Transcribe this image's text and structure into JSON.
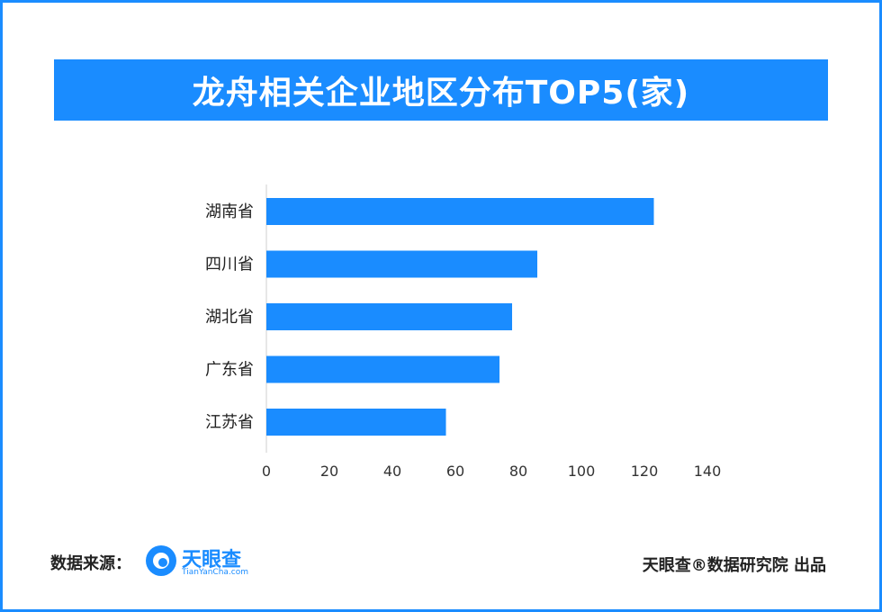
{
  "title": "龙舟相关企业地区分布TOP5(家)",
  "footer": {
    "source_label": "数据来源：",
    "logo_text": "天眼查",
    "logo_sub": "TianYanCha.com",
    "credit": "天眼查®数据研究院 出品"
  },
  "colors": {
    "accent": "#1a8cff",
    "bar": "#1a8cff",
    "axis": "#cfcfcf"
  },
  "chart_data": {
    "type": "bar",
    "orientation": "horizontal",
    "title": "龙舟相关企业地区分布TOP5(家)",
    "categories": [
      "湖南省",
      "四川省",
      "湖北省",
      "广东省",
      "江苏省"
    ],
    "values": [
      123,
      86,
      78,
      74,
      57
    ],
    "xlim": [
      0,
      140
    ],
    "xticks": [
      "0",
      "20",
      "40",
      "60",
      "80",
      "100",
      "120",
      "140"
    ],
    "xtick_values": [
      0,
      20,
      40,
      60,
      80,
      100,
      120,
      140
    ],
    "grid": false,
    "legend": "none"
  }
}
